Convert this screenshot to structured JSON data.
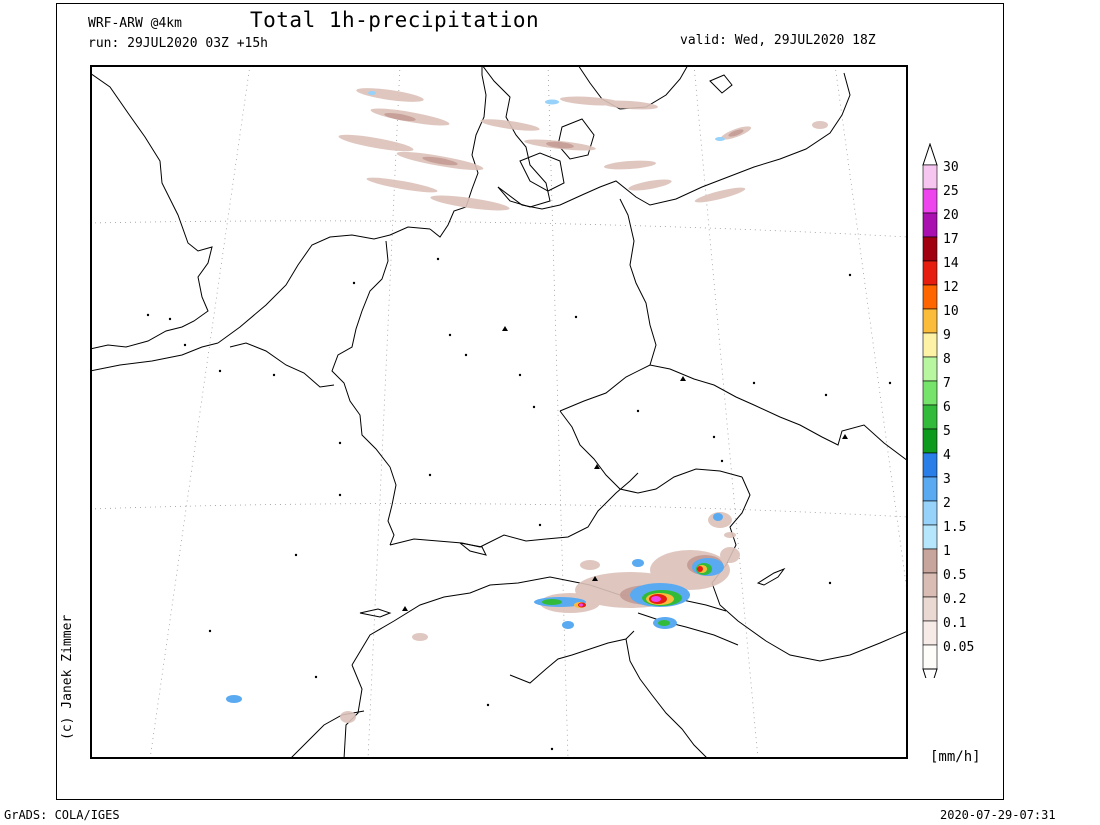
{
  "header": {
    "model": "WRF-ARW @4km",
    "run": "run: 29JUL2020 03Z +15h",
    "title": "Total 1h-precipitation",
    "valid": "valid: Wed, 29JUL2020 18Z"
  },
  "credit": "(c) Janek Zimmer",
  "footer": {
    "software": "GrADS: COLA/IGES",
    "timestamp": "2020-07-29-07:31"
  },
  "legend": {
    "unit": "[mm/h]",
    "levels": [
      {
        "label": "30",
        "color": "#f6c6f0"
      },
      {
        "label": "25",
        "color": "#ee44ee"
      },
      {
        "label": "20",
        "color": "#aa10b0"
      },
      {
        "label": "17",
        "color": "#a00010"
      },
      {
        "label": "14",
        "color": "#e61e10"
      },
      {
        "label": "12",
        "color": "#ff6600"
      },
      {
        "label": "10",
        "color": "#fbbc3c"
      },
      {
        "label": "9",
        "color": "#fdf2a6"
      },
      {
        "label": "8",
        "color": "#b8f6a0"
      },
      {
        "label": "7",
        "color": "#76e46a"
      },
      {
        "label": "6",
        "color": "#32bb3a"
      },
      {
        "label": "5",
        "color": "#0e9a1c"
      },
      {
        "label": "4",
        "color": "#2a7ee8"
      },
      {
        "label": "3",
        "color": "#5aaaf2"
      },
      {
        "label": "2",
        "color": "#96d2fa"
      },
      {
        "label": "1.5",
        "color": "#b6e6fc"
      },
      {
        "label": "1",
        "color": "#c7a49c"
      },
      {
        "label": "0.5",
        "color": "#d9bcb4"
      },
      {
        "label": "0.2",
        "color": "#ead8d2"
      },
      {
        "label": "0.1",
        "color": "#f6ebe6"
      },
      {
        "label": "0.05",
        "color": "#fffdfa"
      }
    ]
  },
  "colors": {
    "coast": "#000000",
    "graticule": "#9a9a9a",
    "light_rain": "#dcc2ba",
    "moderate_rain": "#c39b93"
  }
}
